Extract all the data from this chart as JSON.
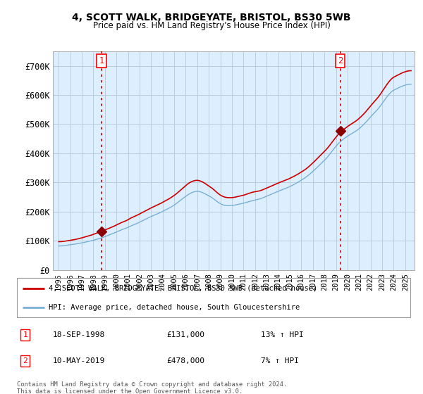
{
  "title": "4, SCOTT WALK, BRIDGEYATE, BRISTOL, BS30 5WB",
  "subtitle": "Price paid vs. HM Land Registry's House Price Index (HPI)",
  "ylim": [
    0,
    750000
  ],
  "yticks": [
    0,
    100000,
    200000,
    300000,
    400000,
    500000,
    600000,
    700000
  ],
  "ytick_labels": [
    "£0",
    "£100K",
    "£200K",
    "£300K",
    "£400K",
    "£500K",
    "£600K",
    "£700K"
  ],
  "sale1_t": 1998.72,
  "sale1_price": 131000,
  "sale2_t": 2019.37,
  "sale2_price": 478000,
  "legend_line1": "4, SCOTT WALK, BRIDGEYATE, BRISTOL, BS30 5WB (detached house)",
  "legend_line2": "HPI: Average price, detached house, South Gloucestershire",
  "table_row1_num": "1",
  "table_row1_date": "18-SEP-1998",
  "table_row1_price": "£131,000",
  "table_row1_hpi": "13% ↑ HPI",
  "table_row2_num": "2",
  "table_row2_date": "10-MAY-2019",
  "table_row2_price": "£478,000",
  "table_row2_hpi": "7% ↑ HPI",
  "footer": "Contains HM Land Registry data © Crown copyright and database right 2024.\nThis data is licensed under the Open Government Licence v3.0.",
  "hpi_color": "#7ab0d4",
  "price_color": "#cc0000",
  "vline_color": "#cc0000",
  "background_color": "#ffffff",
  "plot_bg_color": "#ddeeff",
  "grid_color": "#bbccdd"
}
